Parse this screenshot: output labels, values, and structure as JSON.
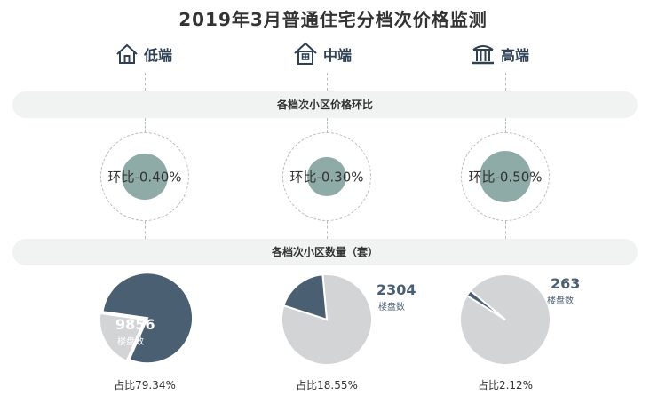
{
  "title": "2019年3月普通住宅分档次价格监测",
  "tiers": [
    {
      "label": "低端",
      "icon": "house-icon"
    },
    {
      "label": "中端",
      "icon": "house-window-icon"
    },
    {
      "label": "高端",
      "icon": "columned-building-icon"
    }
  ],
  "band_price": "各档次小区价格环比",
  "band_count": "各档次小区数量（套）",
  "colors": {
    "dark": "#4b5f73",
    "light": "#d3d4d6",
    "teal": "#8eaba8",
    "band": "#f1f3f2"
  },
  "chart_data": [
    {
      "type": "bubble",
      "title": "各档次小区价格环比",
      "categories": [
        "低端",
        "中端",
        "高端"
      ],
      "values": [
        -0.4,
        -0.3,
        -0.5
      ],
      "labels": [
        "环比-0.40%",
        "环比-0.30%",
        "环比-0.50%"
      ]
    },
    {
      "type": "pie",
      "title": "各档次小区数量（套）",
      "categories": [
        "低端",
        "中端",
        "高端"
      ],
      "values": [
        9856,
        2304,
        263
      ],
      "value_unit": "楼盘数",
      "shares": [
        "占比79.34%",
        "占比18.55%",
        "占比2.12%"
      ],
      "share_values": [
        79.34,
        18.55,
        2.12
      ]
    }
  ]
}
